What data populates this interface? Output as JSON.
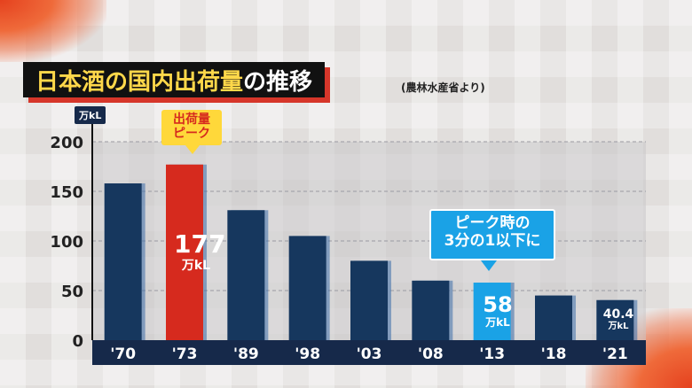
{
  "title": {
    "part1": "日本酒の国内出荷量",
    "part2": "の推移"
  },
  "source": "(農林水産省より)",
  "colors": {
    "bar": "#16375e",
    "peak": "#d62a1e",
    "highlight": "#1aa2e6",
    "title_accent": "#ffd84a"
  },
  "callouts": {
    "peak": {
      "line1": "出荷量",
      "line2": "ピーク"
    },
    "third": {
      "line1": "ピーク時の",
      "line2": "3分の1以下に"
    }
  },
  "value_labels": {
    "peak": {
      "num": "177",
      "unit": "万kL"
    },
    "highlight": {
      "num": "58",
      "unit": "万kL"
    },
    "last": {
      "num": "40.4",
      "unit": "万kL"
    }
  },
  "chart_data": {
    "type": "bar",
    "ylabel": "万kL",
    "ylim": [
      0,
      200
    ],
    "yticks": [
      0,
      50,
      100,
      150,
      200
    ],
    "grid": true,
    "categories": [
      "'70",
      "'73",
      "'89",
      "'98",
      "'03",
      "'08",
      "'13",
      "'18",
      "'21"
    ],
    "values": [
      158,
      177,
      131,
      105,
      80,
      60,
      58,
      45,
      40.4
    ],
    "bar_colors": [
      "bar",
      "peak",
      "bar",
      "bar",
      "bar",
      "bar",
      "highlight",
      "bar",
      "bar"
    ]
  }
}
